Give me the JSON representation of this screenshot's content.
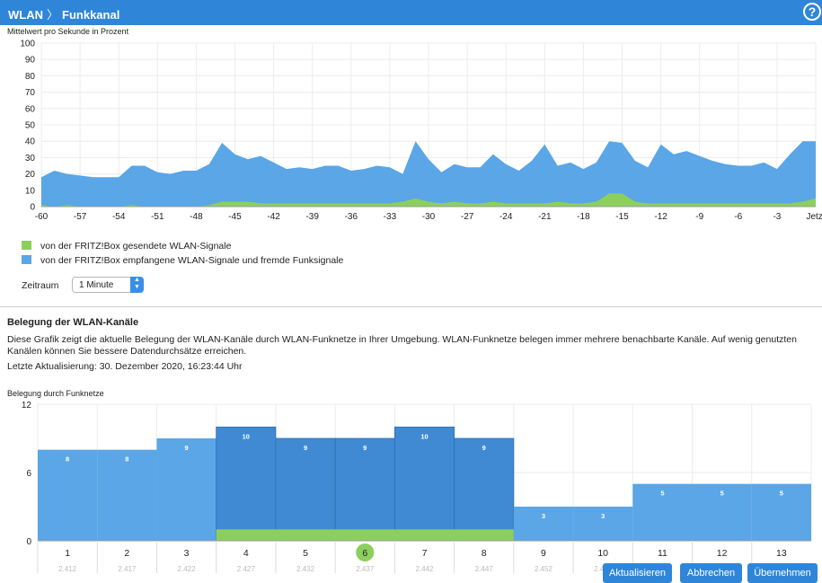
{
  "header": {
    "crumb_1": "WLAN",
    "crumb_2": "Funkkanal",
    "help": "?"
  },
  "top_chart_label": "Mittelwert pro Sekunde in Prozent",
  "legend": {
    "sent": "von der FRITZ!Box gesendete WLAN-Signale",
    "received": "von der FRITZ!Box empfangene WLAN-Signale und fremde Funksignale"
  },
  "zeitraum": {
    "label": "Zeitraum",
    "value": "1 Minute"
  },
  "section": {
    "title": "Belegung der WLAN-Kanäle",
    "description": "Diese Grafik zeigt die aktuelle Belegung der WLAN-Kanäle durch WLAN-Funknetze in Ihrer Umgebung. WLAN-Funknetze belegen immer mehrere benachbarte Kanäle. Auf wenig genutzten Kanälen können Sie bessere Datendurchsätze erreichen.",
    "last_update": "Letzte Aktualisierung: 30. Dezember 2020, 16:23:44 Uhr"
  },
  "bottom_chart_label": "Belegung durch Funknetze",
  "buttons": {
    "refresh": "Aktualisieren",
    "cancel": "Abbrechen",
    "apply": "Übernehmen"
  },
  "colors": {
    "blue": "#5aa6e6",
    "blue_dark": "#3f8ad3",
    "green": "#8dcf5d",
    "header": "#2f86d8"
  },
  "chart_data": [
    {
      "type": "area",
      "ylim": [
        0,
        100
      ],
      "yticks": [
        "100",
        "90",
        "80",
        "70",
        "60",
        "50",
        "40",
        "30",
        "20",
        "10",
        "0"
      ],
      "xticks": [
        "-60",
        "-57",
        "-54",
        "-51",
        "-48",
        "-45",
        "-42",
        "-39",
        "-36",
        "-33",
        "-30",
        "-27",
        "-24",
        "-21",
        "-18",
        "-15",
        "-12",
        "-9",
        "-6",
        "-3",
        "Jetzt"
      ],
      "x": [
        -60,
        -59,
        -58,
        -57,
        -56,
        -55,
        -54,
        -53,
        -52,
        -51,
        -50,
        -49,
        -48,
        -47,
        -46,
        -45,
        -44,
        -43,
        -42,
        -41,
        -40,
        -39,
        -38,
        -37,
        -36,
        -35,
        -34,
        -33,
        -32,
        -31,
        -30,
        -29,
        -28,
        -27,
        -26,
        -25,
        -24,
        -23,
        -22,
        -21,
        -20,
        -19,
        -18,
        -17,
        -16,
        -15,
        -14,
        -13,
        -12,
        -11,
        -10,
        -9,
        -8,
        -7,
        -6,
        -5,
        -4,
        -3,
        -2,
        -1,
        0
      ],
      "series": [
        {
          "name": "von der FRITZ!Box empfangene WLAN-Signale und fremde Funksignale",
          "values": [
            18,
            22,
            20,
            19,
            18,
            18,
            18,
            25,
            25,
            21,
            20,
            22,
            22,
            26,
            39,
            32,
            29,
            31,
            27,
            23,
            24,
            23,
            25,
            25,
            22,
            23,
            25,
            24,
            20,
            40,
            29,
            21,
            26,
            24,
            24,
            32,
            26,
            22,
            28,
            38,
            25,
            27,
            23,
            27,
            40,
            39,
            28,
            24,
            38,
            32,
            34,
            31,
            28,
            26,
            25,
            25,
            27,
            23,
            32,
            40,
            40
          ]
        },
        {
          "name": "von der FRITZ!Box gesendete WLAN-Signale",
          "values": [
            1,
            0,
            1,
            0,
            0,
            0,
            0,
            1,
            0,
            0,
            0,
            0,
            0,
            1,
            3,
            3,
            3,
            2,
            2,
            2,
            2,
            2,
            2,
            2,
            2,
            2,
            2,
            2,
            3,
            5,
            3,
            2,
            3,
            2,
            2,
            3,
            2,
            2,
            2,
            2,
            3,
            2,
            2,
            3,
            8,
            8,
            3,
            2,
            2,
            2,
            2,
            2,
            2,
            2,
            2,
            2,
            2,
            2,
            2,
            3,
            5
          ]
        }
      ]
    },
    {
      "type": "bar",
      "ylim": [
        0,
        12
      ],
      "yticks": [
        "12",
        "6",
        "0"
      ],
      "categories": [
        "1",
        "2",
        "3",
        "4",
        "5",
        "6",
        "7",
        "8",
        "9",
        "10",
        "11",
        "12",
        "13"
      ],
      "freqs": [
        "2.412",
        "2.417",
        "2.422",
        "2.427",
        "2.432",
        "2.437",
        "2.442",
        "2.447",
        "2.452",
        "2.457",
        "2.462",
        "2.467",
        "2.472"
      ],
      "values": [
        8,
        8,
        9,
        10,
        9,
        9,
        10,
        9,
        3,
        3,
        5,
        5,
        5
      ],
      "labels": [
        "8",
        "8",
        "9",
        "10",
        "9",
        "9",
        "10",
        "9",
        "3",
        "3",
        "5",
        "5",
        "5"
      ],
      "highlight_range": [
        "4",
        "8"
      ],
      "selected_channel": "6"
    }
  ]
}
